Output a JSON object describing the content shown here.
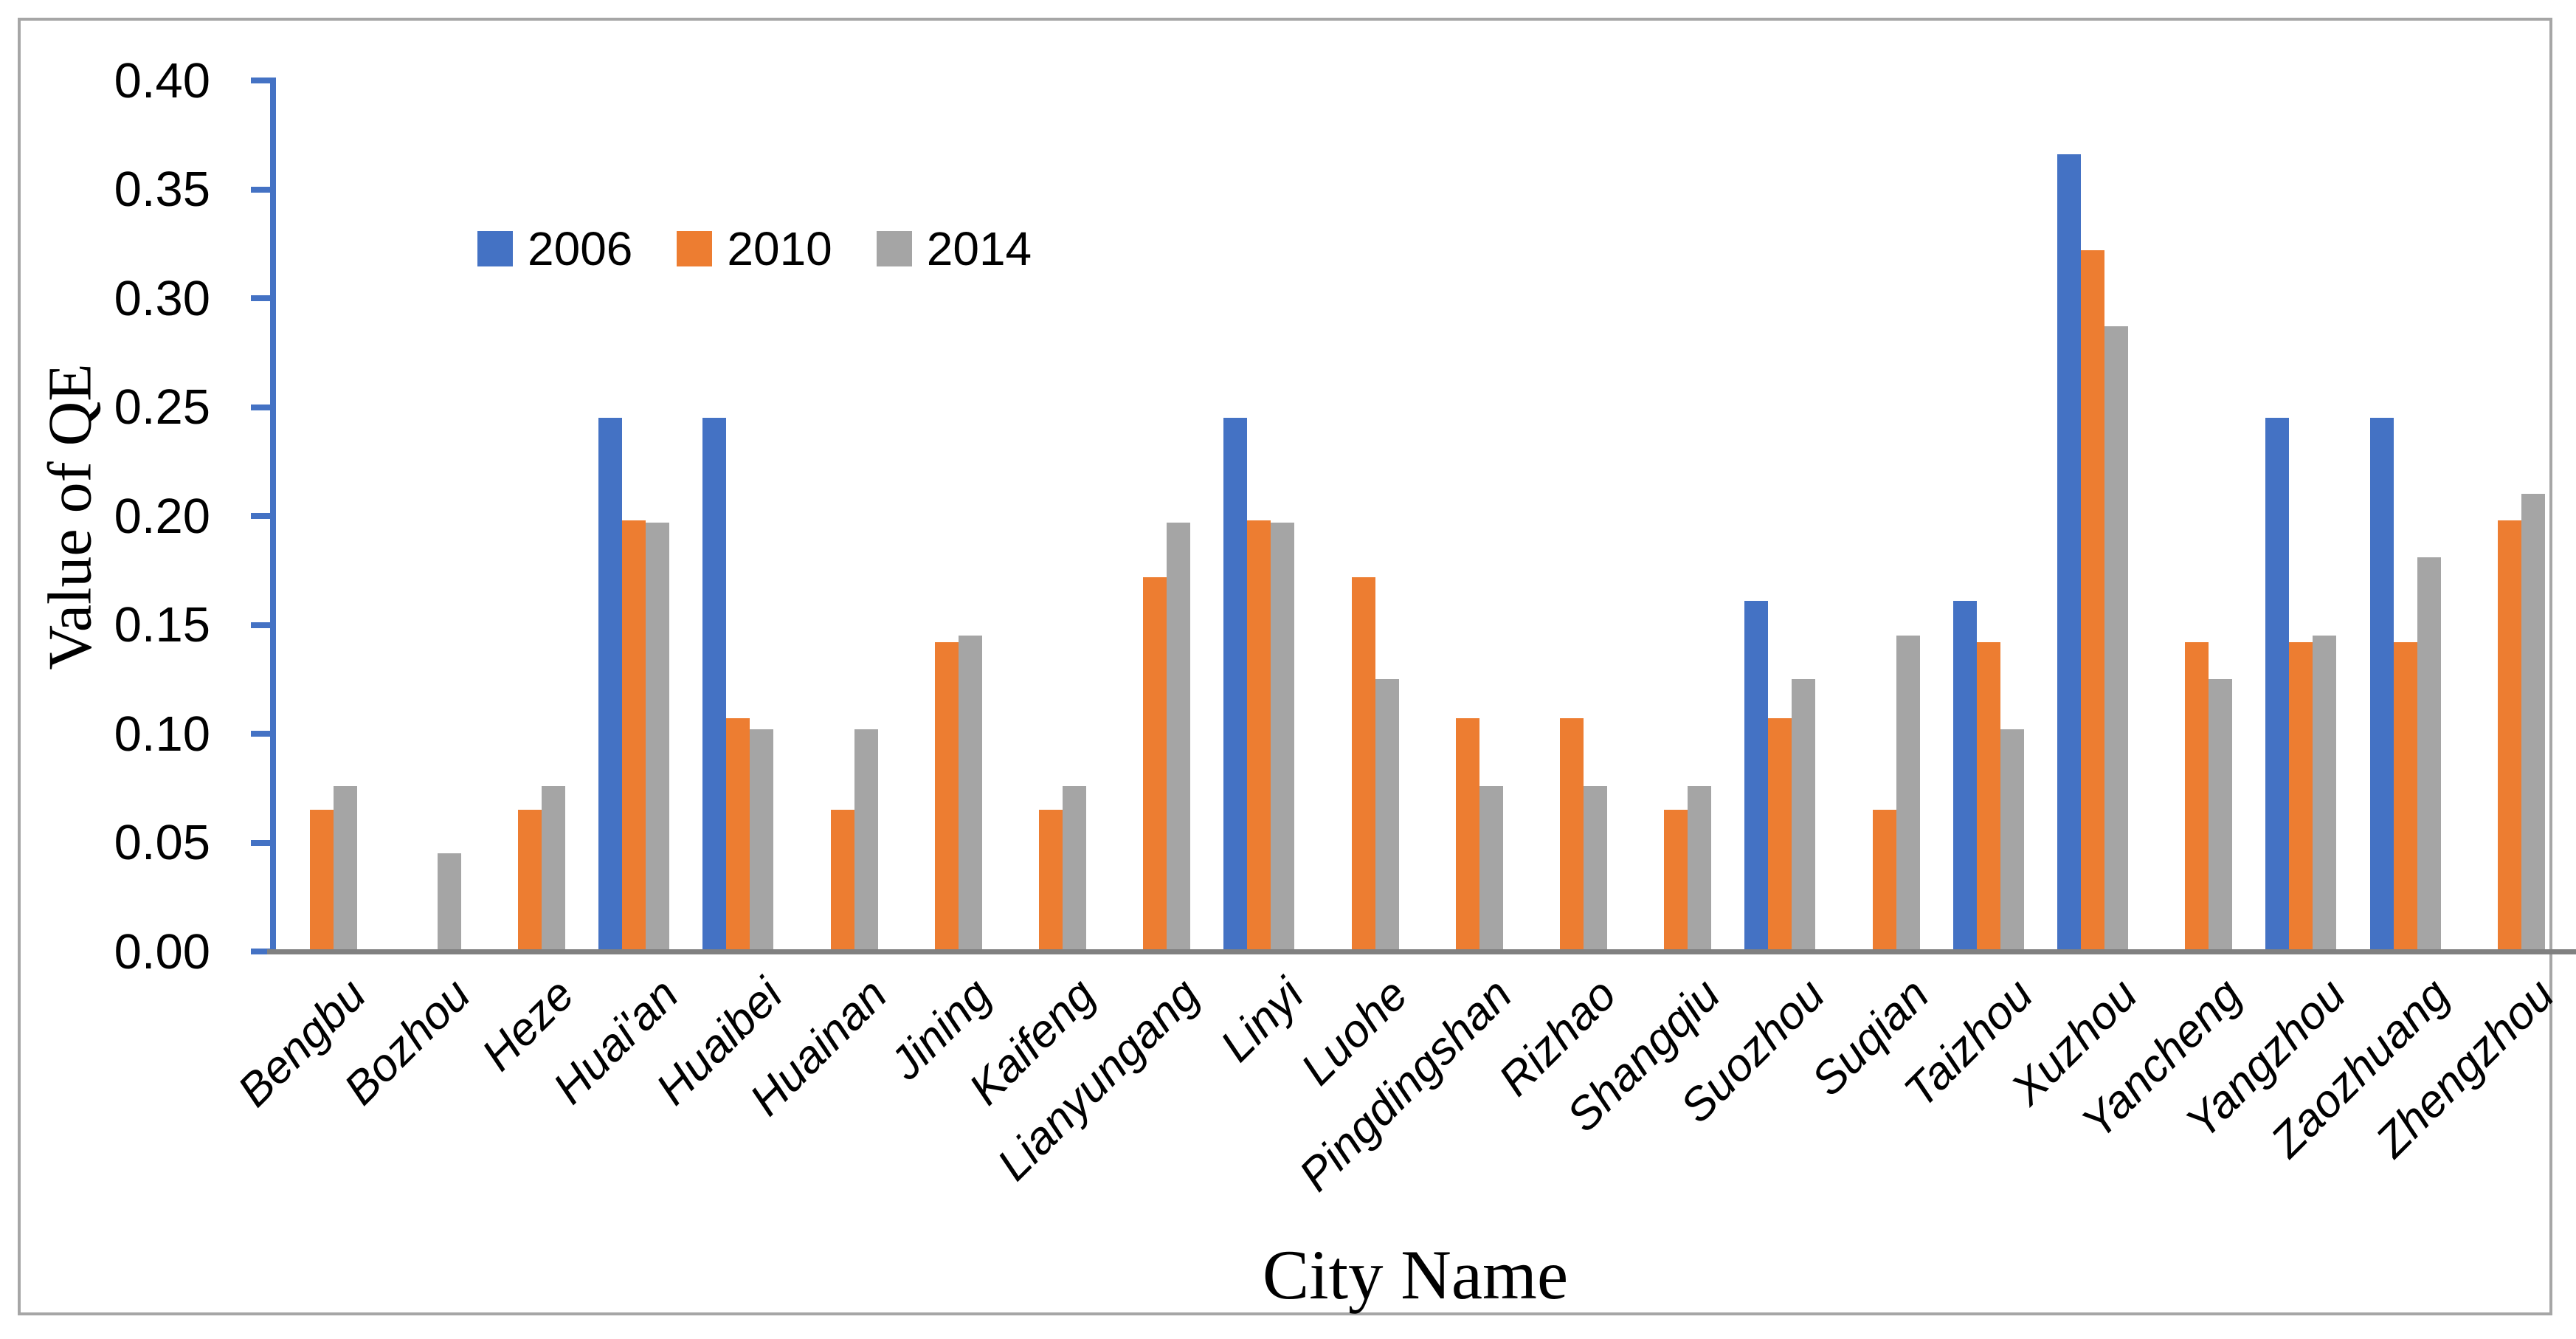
{
  "figure": {
    "background": "#FFFFFF",
    "border_color": "#A6A6A6"
  },
  "chart_data": {
    "type": "bar",
    "title": "",
    "xlabel": "City Name",
    "ylabel": "Value of QE",
    "ylim": [
      0,
      0.4
    ],
    "y_tick_labels": [
      "0.00",
      "0.05",
      "0.10",
      "0.15",
      "0.20",
      "0.25",
      "0.30",
      "0.35",
      "0.40"
    ],
    "grid": false,
    "legend_position": "inside-upper-left",
    "axis_colors": {
      "y_axis": "#4472C4",
      "x_axis": "#808080"
    },
    "categories": [
      "Bengbu",
      "Bozhou",
      "Heze",
      "Huai'an",
      "Huaibei",
      "Huainan",
      "Jining",
      "Kaifeng",
      "Lianyungang",
      "Linyi",
      "Luohe",
      "Pingdingshan",
      "Rizhao",
      "Shangqiu",
      "Suozhou",
      "Suqian",
      "Taizhou",
      "Xuzhou",
      "Yancheng",
      "Yangzhou",
      "Zaozhuang",
      "Zhengzhou"
    ],
    "series": [
      {
        "name": "2006",
        "color": "#4472C4",
        "values": [
          0,
          0,
          0,
          0.245,
          0.245,
          0,
          0,
          0,
          0,
          0.245,
          0,
          0,
          0,
          0,
          0.161,
          0,
          0.161,
          0.366,
          0,
          0.245,
          0.245,
          0
        ]
      },
      {
        "name": "2010",
        "color": "#ED7D31",
        "values": [
          0.065,
          0,
          0.065,
          0.198,
          0.107,
          0.065,
          0.142,
          0.065,
          0.172,
          0.198,
          0.172,
          0.107,
          0.107,
          0.065,
          0.107,
          0.065,
          0.142,
          0.322,
          0.142,
          0.142,
          0.142,
          0.198
        ]
      },
      {
        "name": "2014",
        "color": "#A5A5A5",
        "values": [
          0.076,
          0.045,
          0.076,
          0.197,
          0.102,
          0.102,
          0.145,
          0.076,
          0.197,
          0.197,
          0.125,
          0.076,
          0.076,
          0.076,
          0.125,
          0.145,
          0.102,
          0.287,
          0.125,
          0.145,
          0.181,
          0.21
        ]
      }
    ]
  }
}
